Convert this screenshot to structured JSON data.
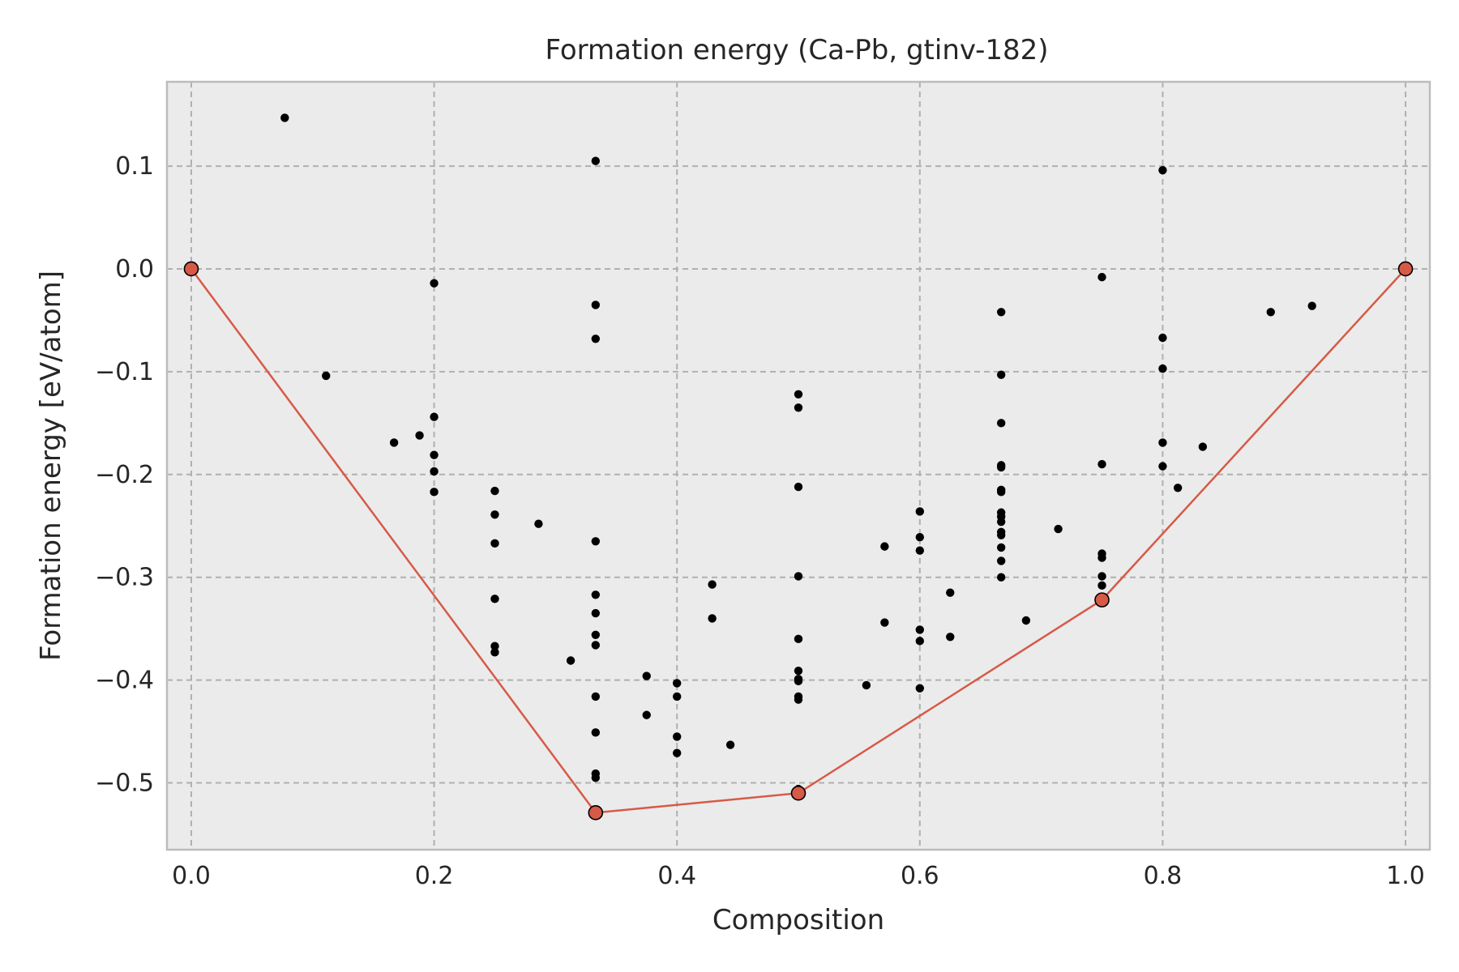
{
  "chart_data": {
    "type": "scatter",
    "title": "Formation energy (Ca-Pb, gtinv-182)",
    "xlabel": "Composition",
    "ylabel": "Formation energy [eV/atom]",
    "xlim": [
      -0.02,
      1.02
    ],
    "ylim": [
      -0.565,
      0.182
    ],
    "grid": true,
    "background_color": "#ebebeb",
    "grid_color": "#b0b0b0",
    "hull_color": "#d65a47",
    "point_color": "#000000",
    "xticks": [
      0.0,
      0.2,
      0.4,
      0.6,
      0.8,
      1.0
    ],
    "xtick_labels": [
      "0.0",
      "0.2",
      "0.4",
      "0.6",
      "0.8",
      "1.0"
    ],
    "yticks": [
      0.1,
      0.0,
      -0.1,
      -0.2,
      -0.3,
      -0.4,
      -0.5
    ],
    "ytick_labels": [
      "0.1",
      "0.0",
      "−0.1",
      "−0.2",
      "−0.3",
      "−0.4",
      "−0.5"
    ],
    "series": [
      {
        "role": "structures",
        "points": [
          [
            0.077,
            0.147
          ],
          [
            0.111,
            -0.104
          ],
          [
            0.167,
            -0.169
          ],
          [
            0.188,
            -0.162
          ],
          [
            0.2,
            -0.014
          ],
          [
            0.2,
            -0.144
          ],
          [
            0.2,
            -0.181
          ],
          [
            0.2,
            -0.197
          ],
          [
            0.2,
            -0.217
          ],
          [
            0.25,
            -0.216
          ],
          [
            0.25,
            -0.239
          ],
          [
            0.25,
            -0.267
          ],
          [
            0.25,
            -0.321
          ],
          [
            0.25,
            -0.367
          ],
          [
            0.25,
            -0.373
          ],
          [
            0.286,
            -0.248
          ],
          [
            0.3125,
            -0.381
          ],
          [
            0.333,
            0.105
          ],
          [
            0.333,
            -0.035
          ],
          [
            0.333,
            -0.068
          ],
          [
            0.333,
            -0.265
          ],
          [
            0.333,
            -0.317
          ],
          [
            0.333,
            -0.335
          ],
          [
            0.333,
            -0.356
          ],
          [
            0.333,
            -0.366
          ],
          [
            0.333,
            -0.416
          ],
          [
            0.333,
            -0.451
          ],
          [
            0.333,
            -0.491
          ],
          [
            0.333,
            -0.495
          ],
          [
            0.375,
            -0.396
          ],
          [
            0.375,
            -0.434
          ],
          [
            0.4,
            -0.403
          ],
          [
            0.4,
            -0.416
          ],
          [
            0.4,
            -0.455
          ],
          [
            0.4,
            -0.471
          ],
          [
            0.429,
            -0.307
          ],
          [
            0.429,
            -0.34
          ],
          [
            0.444,
            -0.463
          ],
          [
            0.5,
            -0.122
          ],
          [
            0.5,
            -0.135
          ],
          [
            0.5,
            -0.212
          ],
          [
            0.5,
            -0.299
          ],
          [
            0.5,
            -0.36
          ],
          [
            0.5,
            -0.391
          ],
          [
            0.5,
            -0.399
          ],
          [
            0.5,
            -0.401
          ],
          [
            0.5,
            -0.416
          ],
          [
            0.5,
            -0.419
          ],
          [
            0.5,
            -0.506
          ],
          [
            0.556,
            -0.405
          ],
          [
            0.571,
            -0.27
          ],
          [
            0.571,
            -0.344
          ],
          [
            0.6,
            -0.236
          ],
          [
            0.6,
            -0.261
          ],
          [
            0.6,
            -0.274
          ],
          [
            0.6,
            -0.351
          ],
          [
            0.6,
            -0.362
          ],
          [
            0.6,
            -0.408
          ],
          [
            0.625,
            -0.315
          ],
          [
            0.625,
            -0.358
          ],
          [
            0.667,
            -0.042
          ],
          [
            0.667,
            -0.103
          ],
          [
            0.667,
            -0.15
          ],
          [
            0.667,
            -0.191
          ],
          [
            0.667,
            -0.193
          ],
          [
            0.667,
            -0.215
          ],
          [
            0.667,
            -0.217
          ],
          [
            0.667,
            -0.237
          ],
          [
            0.667,
            -0.241
          ],
          [
            0.667,
            -0.246
          ],
          [
            0.667,
            -0.256
          ],
          [
            0.667,
            -0.259
          ],
          [
            0.667,
            -0.271
          ],
          [
            0.667,
            -0.284
          ],
          [
            0.667,
            -0.3
          ],
          [
            0.6875,
            -0.342
          ],
          [
            0.714,
            -0.253
          ],
          [
            0.75,
            -0.008
          ],
          [
            0.75,
            -0.19
          ],
          [
            0.75,
            -0.277
          ],
          [
            0.75,
            -0.281
          ],
          [
            0.75,
            -0.299
          ],
          [
            0.75,
            -0.308
          ],
          [
            0.8,
            0.096
          ],
          [
            0.8,
            -0.067
          ],
          [
            0.8,
            -0.097
          ],
          [
            0.8,
            -0.169
          ],
          [
            0.8,
            -0.192
          ],
          [
            0.8125,
            -0.213
          ],
          [
            0.833,
            -0.173
          ],
          [
            0.889,
            -0.042
          ],
          [
            0.923,
            -0.036
          ]
        ]
      },
      {
        "role": "convex-hull",
        "points": [
          [
            0.0,
            0.0
          ],
          [
            0.333,
            -0.529
          ],
          [
            0.5,
            -0.51
          ],
          [
            0.75,
            -0.322
          ],
          [
            1.0,
            0.0
          ]
        ]
      }
    ]
  }
}
